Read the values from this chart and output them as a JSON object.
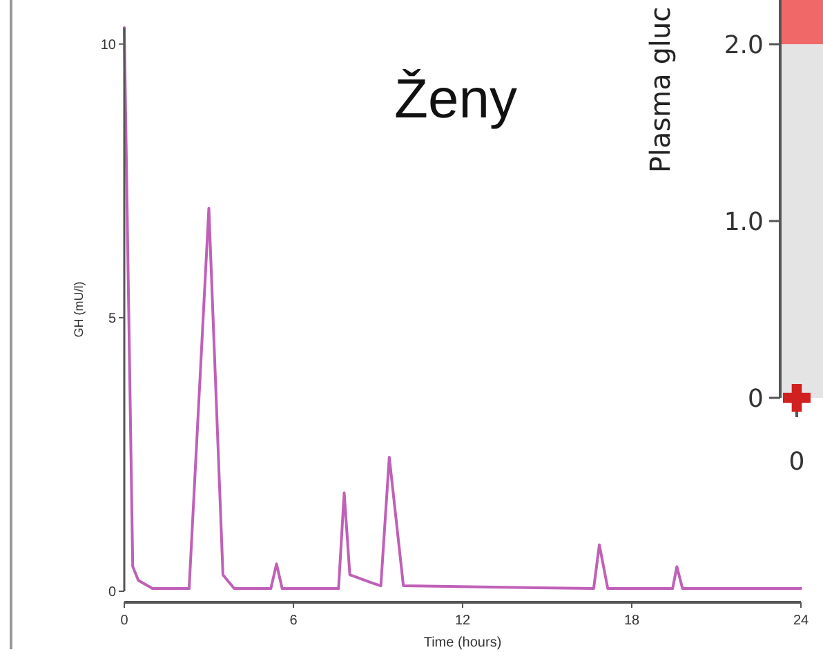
{
  "chart_data": [
    {
      "type": "line",
      "title": "Ženy",
      "xlabel": "Time (hours)",
      "ylabel": "GH (mU/l)",
      "x": [
        0,
        0.3,
        0.5,
        1.0,
        2.3,
        3.0,
        3.5,
        3.9,
        5.2,
        5.4,
        5.6,
        7.6,
        7.8,
        8.0,
        8.8,
        9.1,
        9.4,
        9.9,
        16.65,
        16.85,
        17.15,
        19.45,
        19.6,
        19.8,
        24
      ],
      "series": [
        {
          "color": "#c060b8",
          "values": [
            10.3,
            0.45,
            0.2,
            0.05,
            0.05,
            7.0,
            0.3,
            0.05,
            0.05,
            0.5,
            0.05,
            0.05,
            1.8,
            0.3,
            0.15,
            0.1,
            2.45,
            0.1,
            0.05,
            0.85,
            0.05,
            0.05,
            0.45,
            0.05,
            0.05
          ]
        }
      ],
      "xlim": [
        0,
        24
      ],
      "xticks": [
        0,
        6,
        12,
        18,
        24
      ],
      "ylim": [
        0,
        10.3
      ],
      "yticks": [
        0,
        5,
        10
      ],
      "grid": false
    },
    {
      "type": "scatter",
      "ylabel": "Plasma gluc",
      "categories": [
        "0"
      ],
      "series": [
        {
          "color": "#d02020",
          "values": [
            0
          ]
        }
      ],
      "marker": "cross",
      "ylim": [
        0,
        2.25
      ],
      "yticks": [
        {
          "value": 0,
          "label": "0"
        },
        {
          "value": 1,
          "label": "1.0"
        },
        {
          "value": 2,
          "label": "2.0"
        }
      ],
      "bands": [
        {
          "axis": "y",
          "from": 0,
          "to": 2.0,
          "color": "#e4e4e4"
        },
        {
          "axis": "y",
          "from": 2.0,
          "to": 2.25,
          "color": "#f06868"
        }
      ]
    }
  ]
}
